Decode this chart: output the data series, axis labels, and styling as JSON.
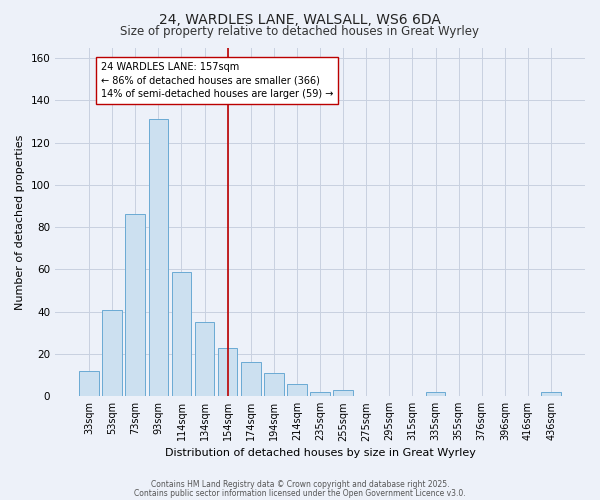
{
  "title1": "24, WARDLES LANE, WALSALL, WS6 6DA",
  "title2": "Size of property relative to detached houses in Great Wyrley",
  "xlabel": "Distribution of detached houses by size in Great Wyrley",
  "ylabel": "Number of detached properties",
  "bar_labels": [
    "33sqm",
    "53sqm",
    "73sqm",
    "93sqm",
    "114sqm",
    "134sqm",
    "154sqm",
    "174sqm",
    "194sqm",
    "214sqm",
    "235sqm",
    "255sqm",
    "275sqm",
    "295sqm",
    "315sqm",
    "335sqm",
    "355sqm",
    "376sqm",
    "396sqm",
    "416sqm",
    "436sqm"
  ],
  "bar_heights": [
    12,
    41,
    86,
    131,
    59,
    35,
    23,
    16,
    11,
    6,
    2,
    3,
    0,
    0,
    0,
    2,
    0,
    0,
    0,
    0,
    2
  ],
  "bar_color": "#cce0f0",
  "bar_edge_color": "#6aaad4",
  "vline_x_index": 6,
  "vline_color": "#bb0000",
  "annotation_text": "24 WARDLES LANE: 157sqm\n← 86% of detached houses are smaller (366)\n14% of semi-detached houses are larger (59) →",
  "annotation_box_edgecolor": "#bb0000",
  "annotation_box_facecolor": "#ffffff",
  "ylim": [
    0,
    165
  ],
  "yticks": [
    0,
    20,
    40,
    60,
    80,
    100,
    120,
    140,
    160
  ],
  "grid_color": "#c8d0e0",
  "background_color": "#edf1f9",
  "footer1": "Contains HM Land Registry data © Crown copyright and database right 2025.",
  "footer2": "Contains public sector information licensed under the Open Government Licence v3.0.",
  "title_fontsize": 10,
  "subtitle_fontsize": 8.5,
  "footer_fontsize": 5.5
}
